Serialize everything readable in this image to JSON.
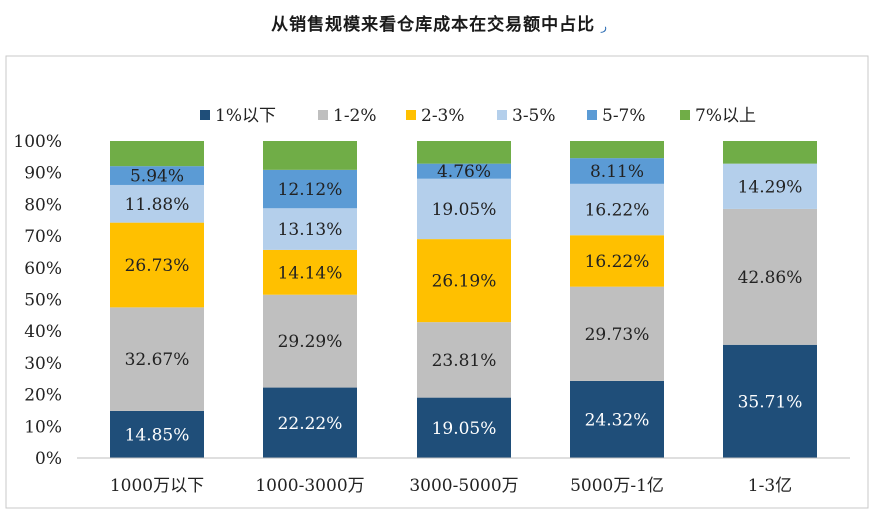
{
  "chart_data": {
    "type": "bar",
    "stacked": true,
    "title": "从销售规模来看仓库成本在交易额中占比",
    "categories": [
      "1000万以下",
      "1000-3000万",
      "3000-5000万",
      "5000万-1亿",
      "1-3亿"
    ],
    "ylim": [
      0,
      100
    ],
    "yticks": [
      "0%",
      "10%",
      "20%",
      "30%",
      "40%",
      "50%",
      "60%",
      "70%",
      "80%",
      "90%",
      "100%"
    ],
    "legend_position": "top",
    "grid": false,
    "series": [
      {
        "name": "1%以下",
        "color": "#1f4e79",
        "values": [
          14.85,
          22.22,
          19.05,
          24.32,
          35.71
        ],
        "labels": [
          "14.85%",
          "22.22%",
          "19.05%",
          "24.32%",
          "35.71%"
        ]
      },
      {
        "name": "1-2%",
        "color": "#bfbfbf",
        "values": [
          32.67,
          29.29,
          23.81,
          29.73,
          42.86
        ],
        "labels": [
          "32.67%",
          "29.29%",
          "23.81%",
          "29.73%",
          "42.86%"
        ]
      },
      {
        "name": "2-3%",
        "color": "#ffc000",
        "values": [
          26.73,
          14.14,
          26.19,
          16.22,
          0
        ],
        "labels": [
          "26.73%",
          "14.14%",
          "26.19%",
          "16.22%",
          ""
        ]
      },
      {
        "name": "3-5%",
        "color": "#b4cfeb",
        "values": [
          11.88,
          13.13,
          19.05,
          16.22,
          14.29
        ],
        "labels": [
          "11.88%",
          "13.13%",
          "19.05%",
          "16.22%",
          "14.29%"
        ]
      },
      {
        "name": "5-7%",
        "color": "#5b9bd5",
        "values": [
          5.94,
          12.12,
          4.76,
          8.11,
          0
        ],
        "labels": [
          "5.94%",
          "12.12%",
          "4.76%",
          "8.11%",
          ""
        ]
      },
      {
        "name": "7%以上",
        "color": "#70ad47",
        "values": [
          7.93,
          9.1,
          7.14,
          5.4,
          7.14
        ],
        "labels": [
          "",
          "",
          "",
          "",
          ""
        ]
      }
    ]
  }
}
